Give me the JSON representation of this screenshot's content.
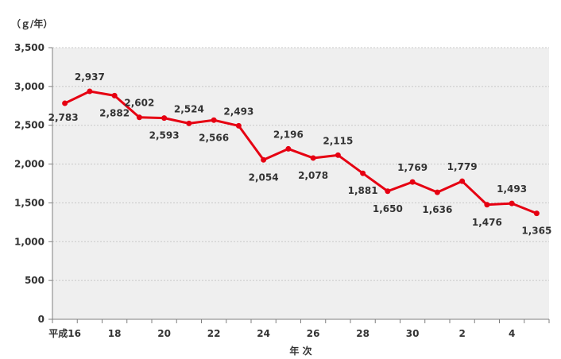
{
  "chart_data": {
    "type": "line",
    "title": "",
    "unit_label": "（ｇ/年）",
    "xlabel": "年 次",
    "ylabel": "",
    "ylim": [
      0,
      3500
    ],
    "yticks": [
      "0",
      "500",
      "1,000",
      "1,500",
      "2,000",
      "2,500",
      "3,000",
      "3,500"
    ],
    "ytick_values": [
      0,
      500,
      1000,
      1500,
      2000,
      2500,
      3000,
      3500
    ],
    "x": [
      16,
      17,
      18,
      19,
      20,
      21,
      22,
      23,
      24,
      25,
      26,
      27,
      28,
      29,
      30,
      31,
      2,
      3,
      4,
      5
    ],
    "xtick_labels": [
      "平成16",
      "",
      "18",
      "",
      "20",
      "",
      "22",
      "",
      "24",
      "",
      "26",
      "",
      "28",
      "",
      "30",
      "",
      "2",
      "",
      "4",
      ""
    ],
    "grid": true,
    "legend": "none",
    "series": [
      {
        "values": [
          2783,
          2937,
          2882,
          2602,
          2593,
          2524,
          2566,
          2493,
          2054,
          2196,
          2078,
          2115,
          1881,
          1650,
          1769,
          1636,
          1779,
          1476,
          1493,
          1365
        ],
        "labels": [
          "2,783",
          "2,937",
          "2,882",
          "2,602",
          "2,593",
          "2,524",
          "2,566",
          "2,493",
          "2,054",
          "2,196",
          "2,078",
          "2,115",
          "1,881",
          "1,650",
          "1,769",
          "1,636",
          "1,779",
          "1,476",
          "1,493",
          "1,365"
        ],
        "label_positions": [
          "below-left",
          "above",
          "below",
          "above",
          "below",
          "above",
          "below",
          "above",
          "below",
          "above",
          "below",
          "above",
          "below",
          "below",
          "above",
          "below",
          "above",
          "below",
          "above",
          "below"
        ]
      }
    ],
    "colors": {
      "line": "#e60012",
      "plot_bg": "#efefef",
      "grid": "#c8c8c8",
      "axis": "#7f7f7f"
    }
  }
}
